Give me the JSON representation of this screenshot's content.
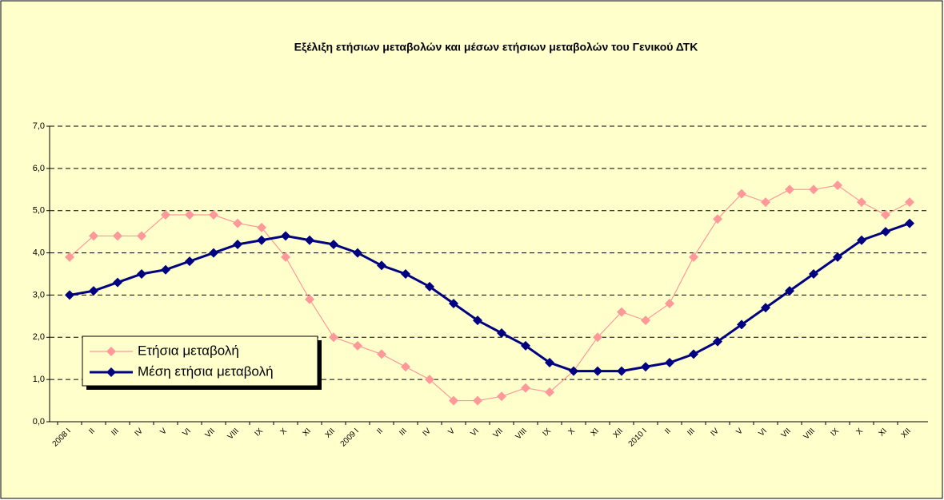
{
  "chart_data": {
    "type": "line",
    "title": "Εξέλιξη ετήσιων  μεταβολών και  μέσων ετήσιων μεταβολών του Γενικού ΔΤΚ",
    "categories": [
      "2008 I",
      "II",
      "III",
      "IV",
      "V",
      "VI",
      "VII",
      "VIII",
      "IX",
      "X",
      "XI",
      "XII",
      "2009 I",
      "II",
      "III",
      "IV",
      "V",
      "VI",
      "VII",
      "VIII",
      "IX",
      "X",
      "XI",
      "XII",
      "2010 I",
      "II",
      "III",
      "IV",
      "V",
      "VI",
      "VII",
      "VIII",
      "IX",
      "X",
      "XI",
      "XII"
    ],
    "series": [
      {
        "name": "Ετήσια μεταβολή",
        "color": "#FF9999",
        "values": [
          3.9,
          4.4,
          4.4,
          4.4,
          4.9,
          4.9,
          4.9,
          4.7,
          4.6,
          3.9,
          2.9,
          2.0,
          1.8,
          1.6,
          1.3,
          1.0,
          0.5,
          0.5,
          0.6,
          0.8,
          0.7,
          1.2,
          2.0,
          2.6,
          2.4,
          2.8,
          3.9,
          4.8,
          5.4,
          5.2,
          5.5,
          5.5,
          5.6,
          5.2,
          4.9,
          5.2
        ]
      },
      {
        "name": "Μέση ετήσια μεταβολή",
        "color": "#000080",
        "values": [
          3.0,
          3.1,
          3.3,
          3.5,
          3.6,
          3.8,
          4.0,
          4.2,
          4.3,
          4.4,
          4.3,
          4.2,
          4.0,
          3.7,
          3.5,
          3.2,
          2.8,
          2.4,
          2.1,
          1.8,
          1.4,
          1.2,
          1.2,
          1.2,
          1.3,
          1.4,
          1.6,
          1.9,
          2.3,
          2.7,
          3.1,
          3.5,
          3.9,
          4.3,
          4.5,
          4.7
        ]
      }
    ],
    "ylim": [
      0,
      7
    ],
    "yticks": [
      {
        "value": 0,
        "label": "0,0"
      },
      {
        "value": 1,
        "label": "1,0"
      },
      {
        "value": 2,
        "label": "2,0"
      },
      {
        "value": 3,
        "label": "3,0"
      },
      {
        "value": 4,
        "label": "4,0"
      },
      {
        "value": 5,
        "label": "5,0"
      },
      {
        "value": 6,
        "label": "6,0"
      },
      {
        "value": 7,
        "label": "7,0"
      }
    ],
    "grid": true,
    "legend": "left"
  }
}
